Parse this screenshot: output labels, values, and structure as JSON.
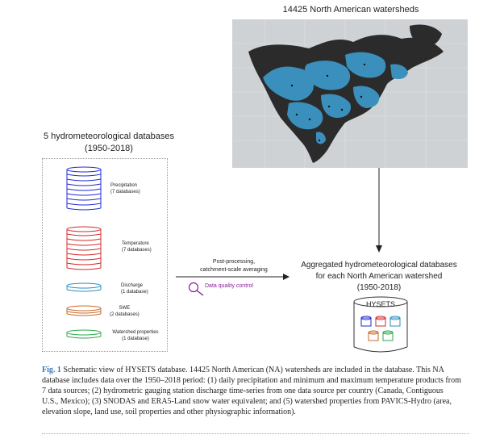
{
  "map": {
    "title": "14425 North American watersheds"
  },
  "databases": {
    "title_line1": "5 hydrometeorological databases",
    "title_line2": "(1950-2018)",
    "items": [
      {
        "name": "Precipitation",
        "count": "(7 databases)",
        "color": "#1f2ad6"
      },
      {
        "name": "Temperature",
        "count": "(7 databases)",
        "color": "#d42828"
      },
      {
        "name": "Discharge",
        "count": "(1 database)",
        "color": "#2a8fc4"
      },
      {
        "name": "SWE",
        "count": "(2 databases)",
        "color": "#c86a2a"
      },
      {
        "name": "Watershed properties",
        "count": "(1 database)",
        "color": "#2aa84a"
      }
    ]
  },
  "process": {
    "line1": "Post-processing,",
    "line2": "catchment-scale averaging",
    "quality": "Data quality control",
    "quality_color": "#8a1e9a"
  },
  "aggregated": {
    "line1": "Aggregated hydrometeorological databases",
    "line2": "for each North American watershed",
    "line3": "(1950-2018)",
    "cylinder_label": "HYSETS"
  },
  "caption": {
    "fig": "Fig. 1",
    "text": "Schematic view of HYSETS database. 14425 North American (NA) watersheds are included in the database. This NA database includes data over the 1950–2018 period: (1) daily precipitation and minimum and maximum temperature products from 7 data sources; (2) hydrometric gauging station discharge time-series from one data source per country (Canada, Contiguous U.S., Mexico); (3) SNODAS and ERA5-Land snow water equivalent; and (5) watershed properties from PAVICS-Hydro (area, elevation slope, land use, soil properties and other physiographic information)."
  }
}
